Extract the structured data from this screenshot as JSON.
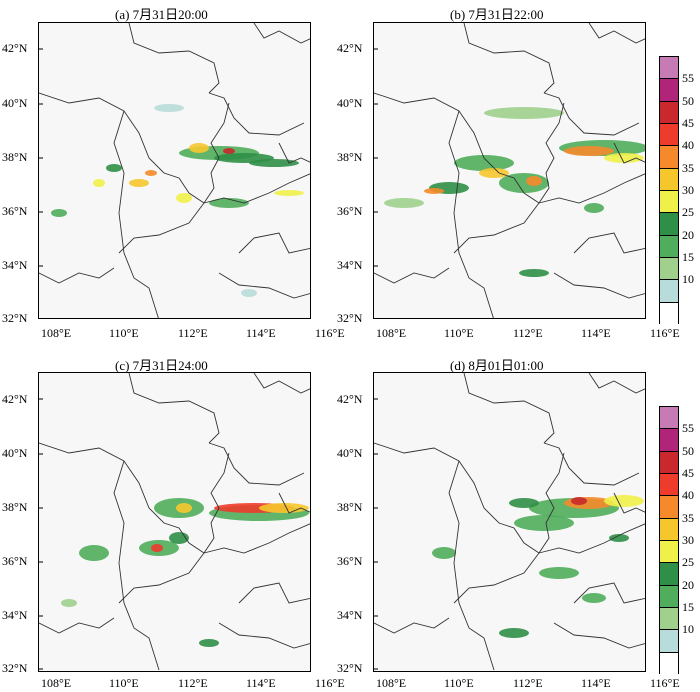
{
  "panels": [
    {
      "title": "(a) 7月31日20:00"
    },
    {
      "title": "(b) 7月31日22:00"
    },
    {
      "title": "(c) 7月31日24:00"
    },
    {
      "title": "(d) 8月01日01:00"
    }
  ],
  "lat_ticks": [
    "42°N",
    "40°N",
    "38°N",
    "36°N",
    "34°N",
    "32°N"
  ],
  "lon_ticks": [
    "108°E",
    "110°E",
    "112°E",
    "114°E",
    "116°E"
  ],
  "colorbar": {
    "levels": [
      "55",
      "50",
      "45",
      "40",
      "35",
      "30",
      "25",
      "20",
      "15",
      "10"
    ],
    "colors": [
      "#c77bb5",
      "#b0257a",
      "#c9282c",
      "#ee3b2c",
      "#f5892b",
      "#f6c72d",
      "#f0f04a",
      "#2f8f46",
      "#4fad5b",
      "#9fd08c",
      "#b8dcd9",
      "#ffffff"
    ]
  }
}
